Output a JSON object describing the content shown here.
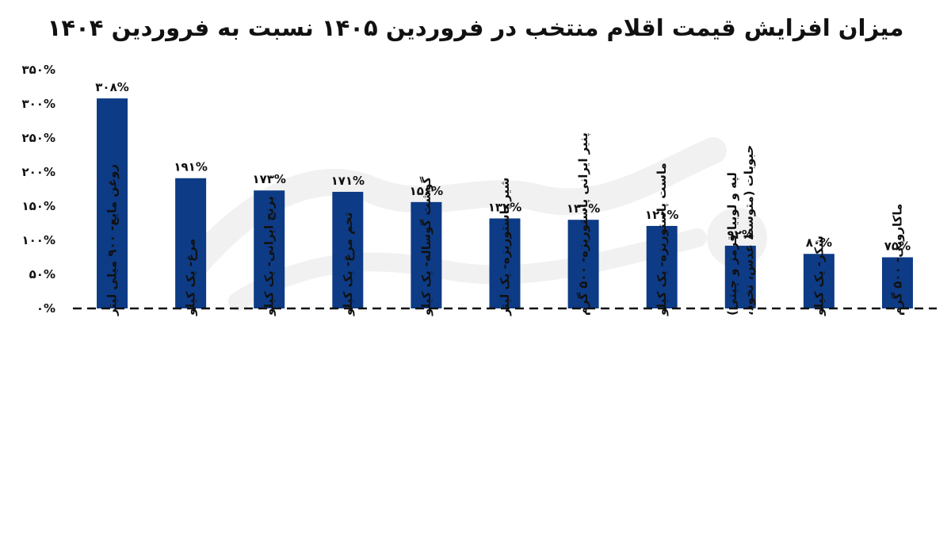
{
  "chart_data": {
    "type": "bar",
    "title": "میزان افزایش قیمت اقلام منتخب در فروردین ۱۴۰۵ نسبت به فروردین ۱۴۰۴",
    "xlabel": "",
    "ylabel": "",
    "ylim": [
      0,
      350
    ],
    "grid": false,
    "baseline_style": "dashed",
    "bar_color": "#0d3b85",
    "y_ticks": [
      {
        "value": 0,
        "label": "۰%"
      },
      {
        "value": 50,
        "label": "۵۰%"
      },
      {
        "value": 100,
        "label": "۱۰۰%"
      },
      {
        "value": 150,
        "label": "۱۵۰%"
      },
      {
        "value": 200,
        "label": "۲۰۰%"
      },
      {
        "value": 250,
        "label": "۲۵۰%"
      },
      {
        "value": 300,
        "label": "۳۰۰%"
      },
      {
        "value": 350,
        "label": "۳۵۰%"
      }
    ],
    "categories": [
      [
        "روغن مایع- ۹۰۰ میلی لیتر"
      ],
      [
        "مرغ- یک کیلو"
      ],
      [
        "برنج ایرانی- یک کیلو"
      ],
      [
        "تخم مرغ- یک کیلو"
      ],
      [
        "گوشت گوساله- یک کیلو"
      ],
      [
        "شیر پاستوریزه- یک لیتر"
      ],
      [
        "پنیر ایرانی پاستوریزه- ۵۰۰ گرم"
      ],
      [
        "ماست پاستوریزه- یک کیلو"
      ],
      [
        "حبوبات (متوسط عدس، نخود،",
        "لپه و لوبیا قرمز و چیتی)"
      ],
      [
        "شکر- یک کیلو"
      ],
      [
        "ماکارونی- ۵۰۰ گرم"
      ]
    ],
    "values": [
      308,
      191,
      173,
      171,
      156,
      132,
      130,
      121,
      92,
      80,
      75
    ],
    "data_labels": [
      "۳۰۸%",
      "۱۹۱%",
      "۱۷۳%",
      "۱۷۱%",
      "۱۵۶%",
      "۱۳۲%",
      "۱۳۰%",
      "۱۲۱%",
      "۹۲%",
      "۸۰%",
      "۷۵%"
    ]
  }
}
